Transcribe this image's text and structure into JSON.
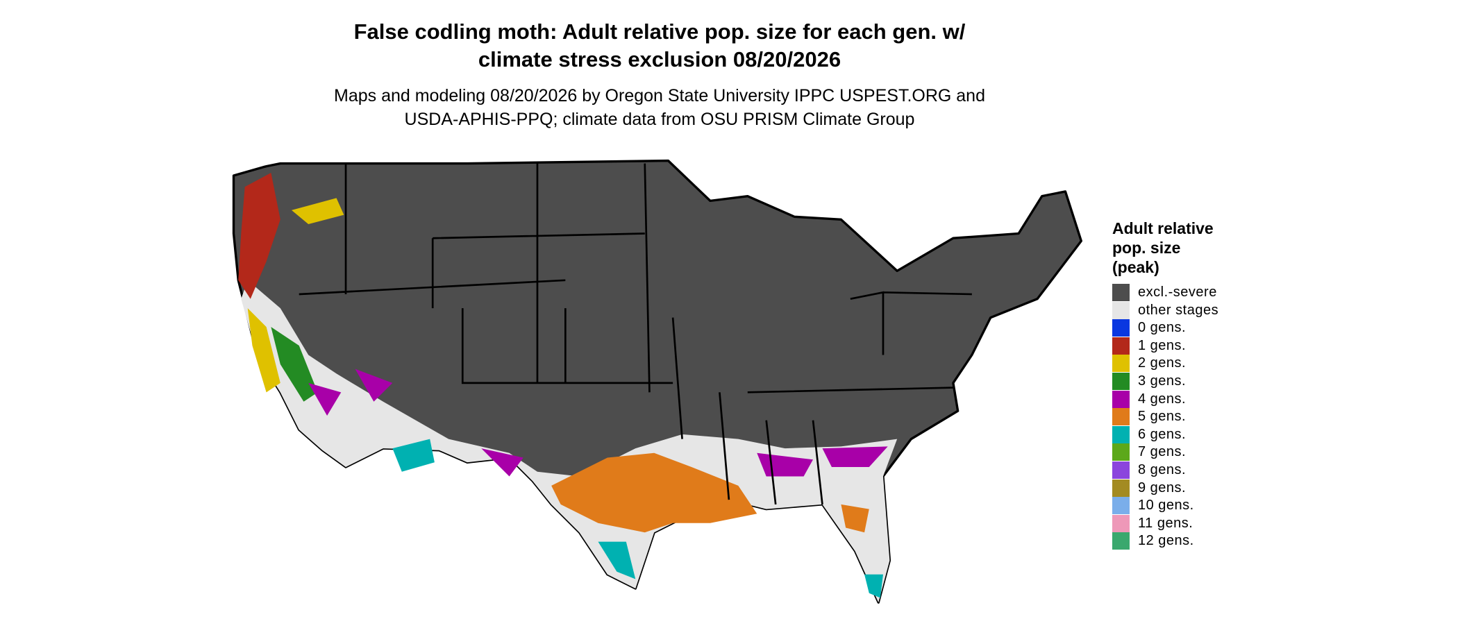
{
  "title": [
    "False codling moth: Adult relative pop. size for each gen. w/",
    "climate stress exclusion 08/20/2026"
  ],
  "subtitle": [
    "Maps and modeling 08/20/2026 by Oregon State University IPPC USPEST.ORG and",
    "USDA-APHIS-PPQ; climate data from OSU PRISM Climate Group"
  ],
  "legend": {
    "title": [
      "Adult relative",
      "pop. size",
      "(peak)"
    ],
    "items": [
      {
        "label": "excl.-severe",
        "color": "#4d4d4d"
      },
      {
        "label": "other stages",
        "color": "#e6e6e6"
      },
      {
        "label": "0 gens.",
        "color": "#0a37e0"
      },
      {
        "label": "1 gens.",
        "color": "#b3281a"
      },
      {
        "label": "2 gens.",
        "color": "#dfc100"
      },
      {
        "label": "3 gens.",
        "color": "#238b23"
      },
      {
        "label": "4 gens.",
        "color": "#a800a8"
      },
      {
        "label": "5 gens.",
        "color": "#e07b1a"
      },
      {
        "label": "6 gens.",
        "color": "#00b1b1"
      },
      {
        "label": "7 gens.",
        "color": "#5ca81a"
      },
      {
        "label": "8 gens.",
        "color": "#8b45dd"
      },
      {
        "label": "9 gens.",
        "color": "#a38b22"
      },
      {
        "label": "10 gens.",
        "color": "#7aaeea"
      },
      {
        "label": "11 gens.",
        "color": "#ee98b8"
      },
      {
        "label": "12 gens.",
        "color": "#3aa86e"
      }
    ]
  }
}
